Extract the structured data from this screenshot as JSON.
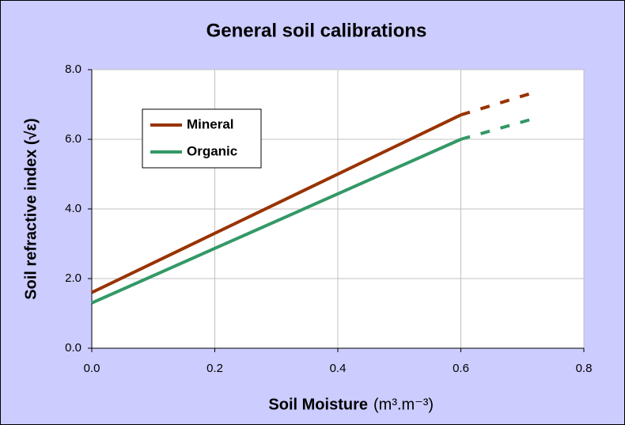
{
  "chart_data": {
    "type": "line",
    "title": "General soil calibrations",
    "x_label": "Soil Moisture",
    "x_label_units": "(m³.m⁻³)",
    "y_label": "Soil refractive index (√ε)",
    "series": [
      {
        "name": "Mineral",
        "color": "#993300",
        "x": [
          0,
          0.6,
          0.72
        ],
        "values": [
          1.6,
          6.7,
          7.35
        ],
        "line_style": [
          "solid",
          "dashed"
        ]
      },
      {
        "name": "Organic",
        "color": "#339966",
        "x": [
          0,
          0.6,
          0.72
        ],
        "values": [
          1.3,
          6.0,
          6.6
        ],
        "line_style": [
          "solid",
          "dashed"
        ]
      }
    ],
    "xlim": [
      0,
      0.8
    ],
    "xticks": [
      {
        "value": 0,
        "label": "0.0"
      },
      0.2,
      0.4,
      0.6,
      0.8
    ],
    "ylim": [
      0,
      8
    ],
    "yticks": [
      {
        "value": 0,
        "label": "0.0"
      },
      {
        "value": 2,
        "label": "2.0"
      },
      {
        "value": 4,
        "label": "4.0"
      },
      {
        "value": 6,
        "label": "6.0"
      },
      {
        "value": 8,
        "label": "8.0"
      }
    ],
    "grid": true,
    "legend": "upper left"
  }
}
